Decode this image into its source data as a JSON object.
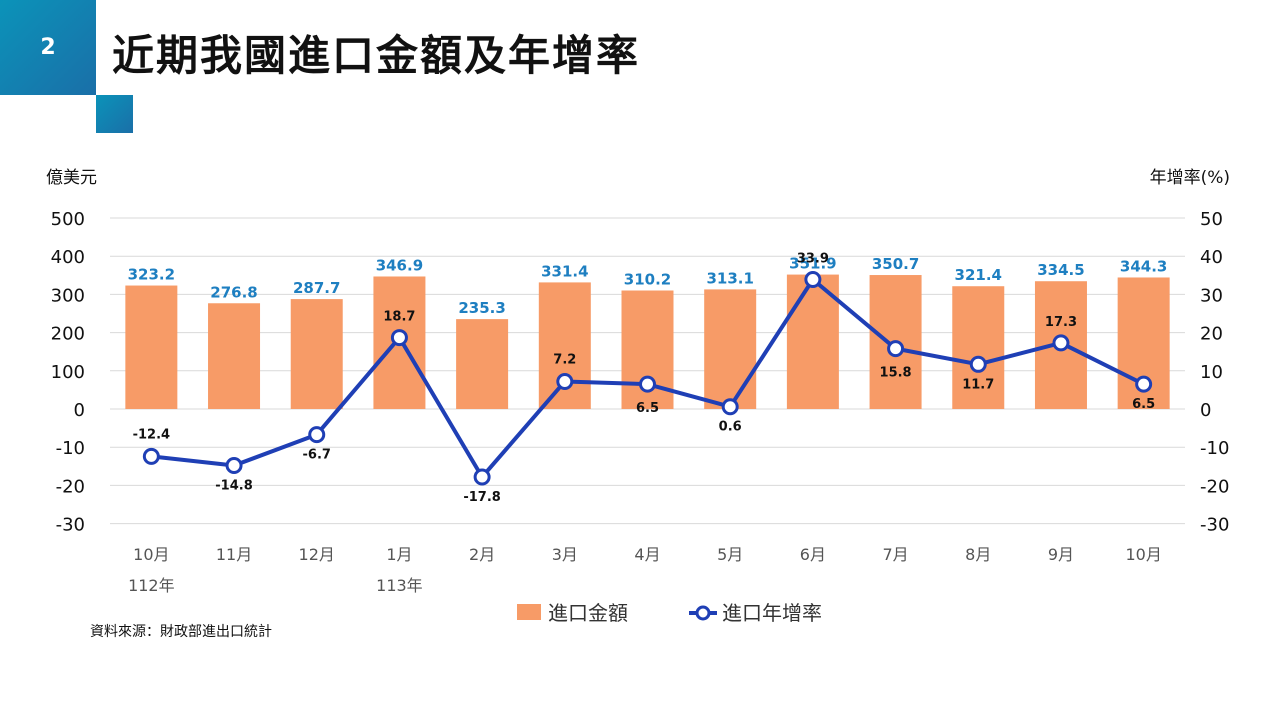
{
  "slide": {
    "number": "2",
    "title": "近期我國進口金額及年增率",
    "source": "資料來源：財政部進出口統計"
  },
  "chart_data": {
    "type": "bar+line",
    "title": "",
    "y_left_label": "億美元",
    "y_right_label": "年增率(%)",
    "y_left_ticks": [
      500,
      400,
      300,
      200,
      100,
      0,
      -10,
      -20,
      -30
    ],
    "y_right_ticks": [
      50,
      40,
      30,
      20,
      10,
      0,
      -10,
      -20,
      -30
    ],
    "y_left_range": [
      -30,
      500
    ],
    "y_right_range": [
      -30,
      50
    ],
    "categories": [
      "10月",
      "11月",
      "12月",
      "1月",
      "2月",
      "3月",
      "4月",
      "5月",
      "6月",
      "7月",
      "8月",
      "9月",
      "10月"
    ],
    "year_labels": [
      {
        "index": 0,
        "label": "112年"
      },
      {
        "index": 3,
        "label": "113年"
      }
    ],
    "series": [
      {
        "name": "進口金額",
        "type": "bar",
        "axis": "left",
        "color": "#f79b67",
        "label_color": "#1e7fc1",
        "values": [
          323.2,
          276.8,
          287.7,
          346.9,
          235.3,
          331.4,
          310.2,
          313.1,
          351.9,
          350.7,
          321.4,
          334.5,
          344.3
        ]
      },
      {
        "name": "進口年增率",
        "type": "line",
        "axis": "right",
        "color": "#1f3fb5",
        "label_color": "#111111",
        "values": [
          -12.4,
          -14.8,
          -6.7,
          18.7,
          -17.8,
          7.2,
          6.5,
          0.6,
          33.9,
          15.8,
          11.7,
          17.3,
          6.5
        ]
      }
    ],
    "legend_position": "bottom-center",
    "grid": true
  }
}
